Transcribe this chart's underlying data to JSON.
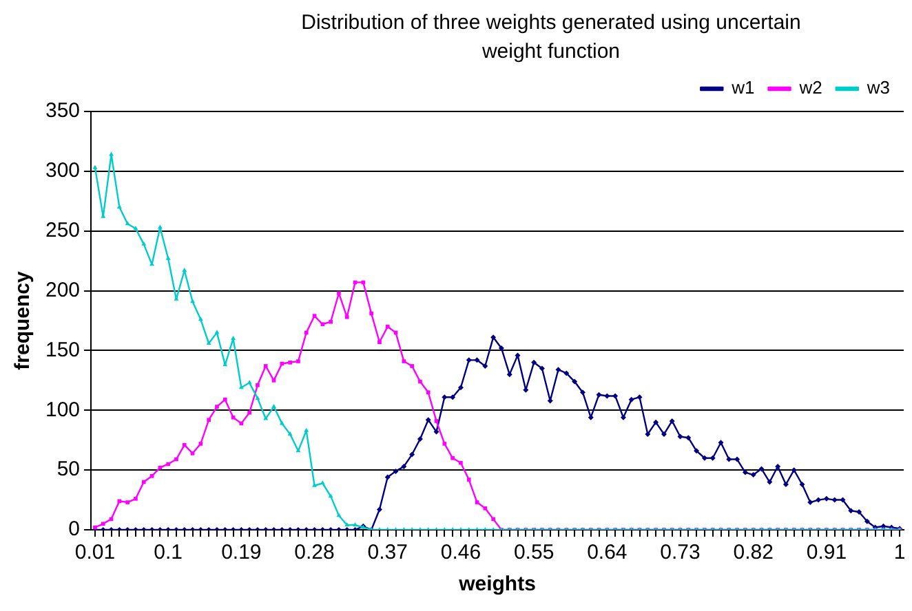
{
  "chart_data": {
    "type": "line",
    "title": "Distribution of three weights generated using uncertain weight function",
    "xlabel": "weights",
    "ylabel": "frequency",
    "categories": [
      "0.01",
      null,
      null,
      null,
      null,
      null,
      null,
      null,
      null,
      "0.1",
      null,
      null,
      null,
      null,
      null,
      null,
      null,
      null,
      "0.19",
      null,
      null,
      null,
      null,
      null,
      null,
      null,
      null,
      "0.28",
      null,
      null,
      null,
      null,
      null,
      null,
      null,
      null,
      "0.37",
      null,
      null,
      null,
      null,
      null,
      null,
      null,
      null,
      "0.46",
      null,
      null,
      null,
      null,
      null,
      null,
      null,
      null,
      "0.55",
      null,
      null,
      null,
      null,
      null,
      null,
      null,
      null,
      "0.64",
      null,
      null,
      null,
      null,
      null,
      null,
      null,
      null,
      "0.73",
      null,
      null,
      null,
      null,
      null,
      null,
      null,
      null,
      "0.82",
      null,
      null,
      null,
      null,
      null,
      null,
      null,
      null,
      "0.91",
      null,
      null,
      null,
      null,
      null,
      null,
      null,
      null,
      "1"
    ],
    "ylim": [
      0,
      350
    ],
    "yticks": [
      0,
      50,
      100,
      150,
      200,
      250,
      300,
      350
    ],
    "grid": "y",
    "legend": "top right",
    "line_style": "solid",
    "series": [
      {
        "name": "w1",
        "color": "#000080",
        "marker": "diamond",
        "values": [
          0,
          0,
          0,
          0,
          0,
          0,
          0,
          0,
          0,
          0,
          0,
          0,
          0,
          0,
          0,
          0,
          0,
          0,
          0,
          0,
          0,
          0,
          0,
          0,
          0,
          0,
          0,
          0,
          0,
          0,
          0,
          0,
          0,
          3,
          0,
          17,
          44,
          49,
          53,
          63,
          76,
          92,
          82,
          111,
          111,
          119,
          142,
          142,
          137,
          161,
          152,
          130,
          146,
          117,
          140,
          135,
          108,
          134,
          131,
          124,
          115,
          94,
          113,
          112,
          112,
          94,
          109,
          111,
          80,
          90,
          80,
          91,
          78,
          77,
          66,
          60,
          60,
          73,
          59,
          59,
          48,
          46,
          51,
          40,
          53,
          38,
          50,
          38,
          23,
          25,
          26,
          25,
          25,
          16,
          15,
          7,
          2,
          3,
          2,
          1
        ]
      },
      {
        "name": "w2",
        "color": "#ff00ff",
        "marker": "square",
        "values": [
          2,
          5,
          9,
          24,
          23,
          26,
          40,
          45,
          52,
          55,
          59,
          71,
          64,
          72,
          92,
          103,
          109,
          94,
          89,
          98,
          121,
          137,
          125,
          139,
          140,
          141,
          165,
          179,
          172,
          174,
          198,
          178,
          207,
          207,
          181,
          157,
          170,
          165,
          141,
          137,
          124,
          115,
          91,
          72,
          60,
          56,
          42,
          23,
          18,
          9,
          0,
          0,
          0,
          0,
          0,
          0,
          0,
          0,
          0,
          0,
          0,
          0,
          0,
          0,
          0,
          0,
          0,
          0,
          0,
          0,
          0,
          0,
          0,
          0,
          0,
          0,
          0,
          0,
          0,
          0,
          0,
          0,
          0,
          0,
          0,
          0,
          0,
          0,
          0,
          0,
          0,
          0,
          0,
          0,
          0,
          0,
          0,
          0,
          0,
          0
        ]
      },
      {
        "name": "w3",
        "color": "#00cccc",
        "marker": "triangle",
        "values": [
          303,
          262,
          314,
          270,
          256,
          252,
          239,
          222,
          253,
          227,
          193,
          217,
          191,
          176,
          156,
          165,
          138,
          160,
          119,
          123,
          110,
          93,
          103,
          89,
          80,
          66,
          83,
          37,
          39,
          28,
          12,
          4,
          4,
          2,
          0,
          0,
          0,
          0,
          0,
          0,
          0,
          0,
          0,
          0,
          0,
          0,
          0,
          0,
          0,
          0,
          0,
          0,
          0,
          0,
          0,
          0,
          0,
          0,
          0,
          0,
          0,
          0,
          0,
          0,
          0,
          0,
          0,
          0,
          0,
          0,
          0,
          0,
          0,
          0,
          0,
          0,
          0,
          0,
          0,
          0,
          0,
          0,
          0,
          0,
          0,
          0,
          0,
          0,
          0,
          0,
          0,
          0,
          0,
          0,
          0,
          0,
          0,
          0,
          0,
          0
        ]
      }
    ]
  }
}
